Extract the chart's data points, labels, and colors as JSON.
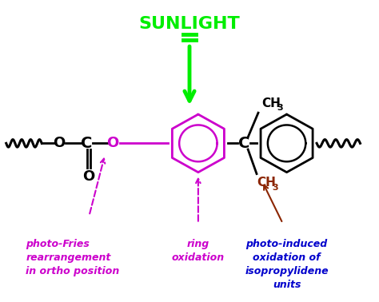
{
  "background_color": "#ffffff",
  "sunlight_text": "SUNLIGHT",
  "sunlight_color": "#00ee00",
  "ring1_color": "#cc00cc",
  "ring2_color": "#000000",
  "photo_fries_text": "photo-Fries\nrearrangement\nin ortho position",
  "photo_fries_color": "#cc00cc",
  "ring_oxidation_text": "ring\noxidation",
  "ring_oxidation_color": "#cc00cc",
  "photo_induced_text": "photo-induced\noxidation of\nisopropylidene\nunits",
  "photo_induced_color": "#0000cc",
  "ch3_red_color": "#8b2500",
  "arrow_brown_color": "#8b2500"
}
